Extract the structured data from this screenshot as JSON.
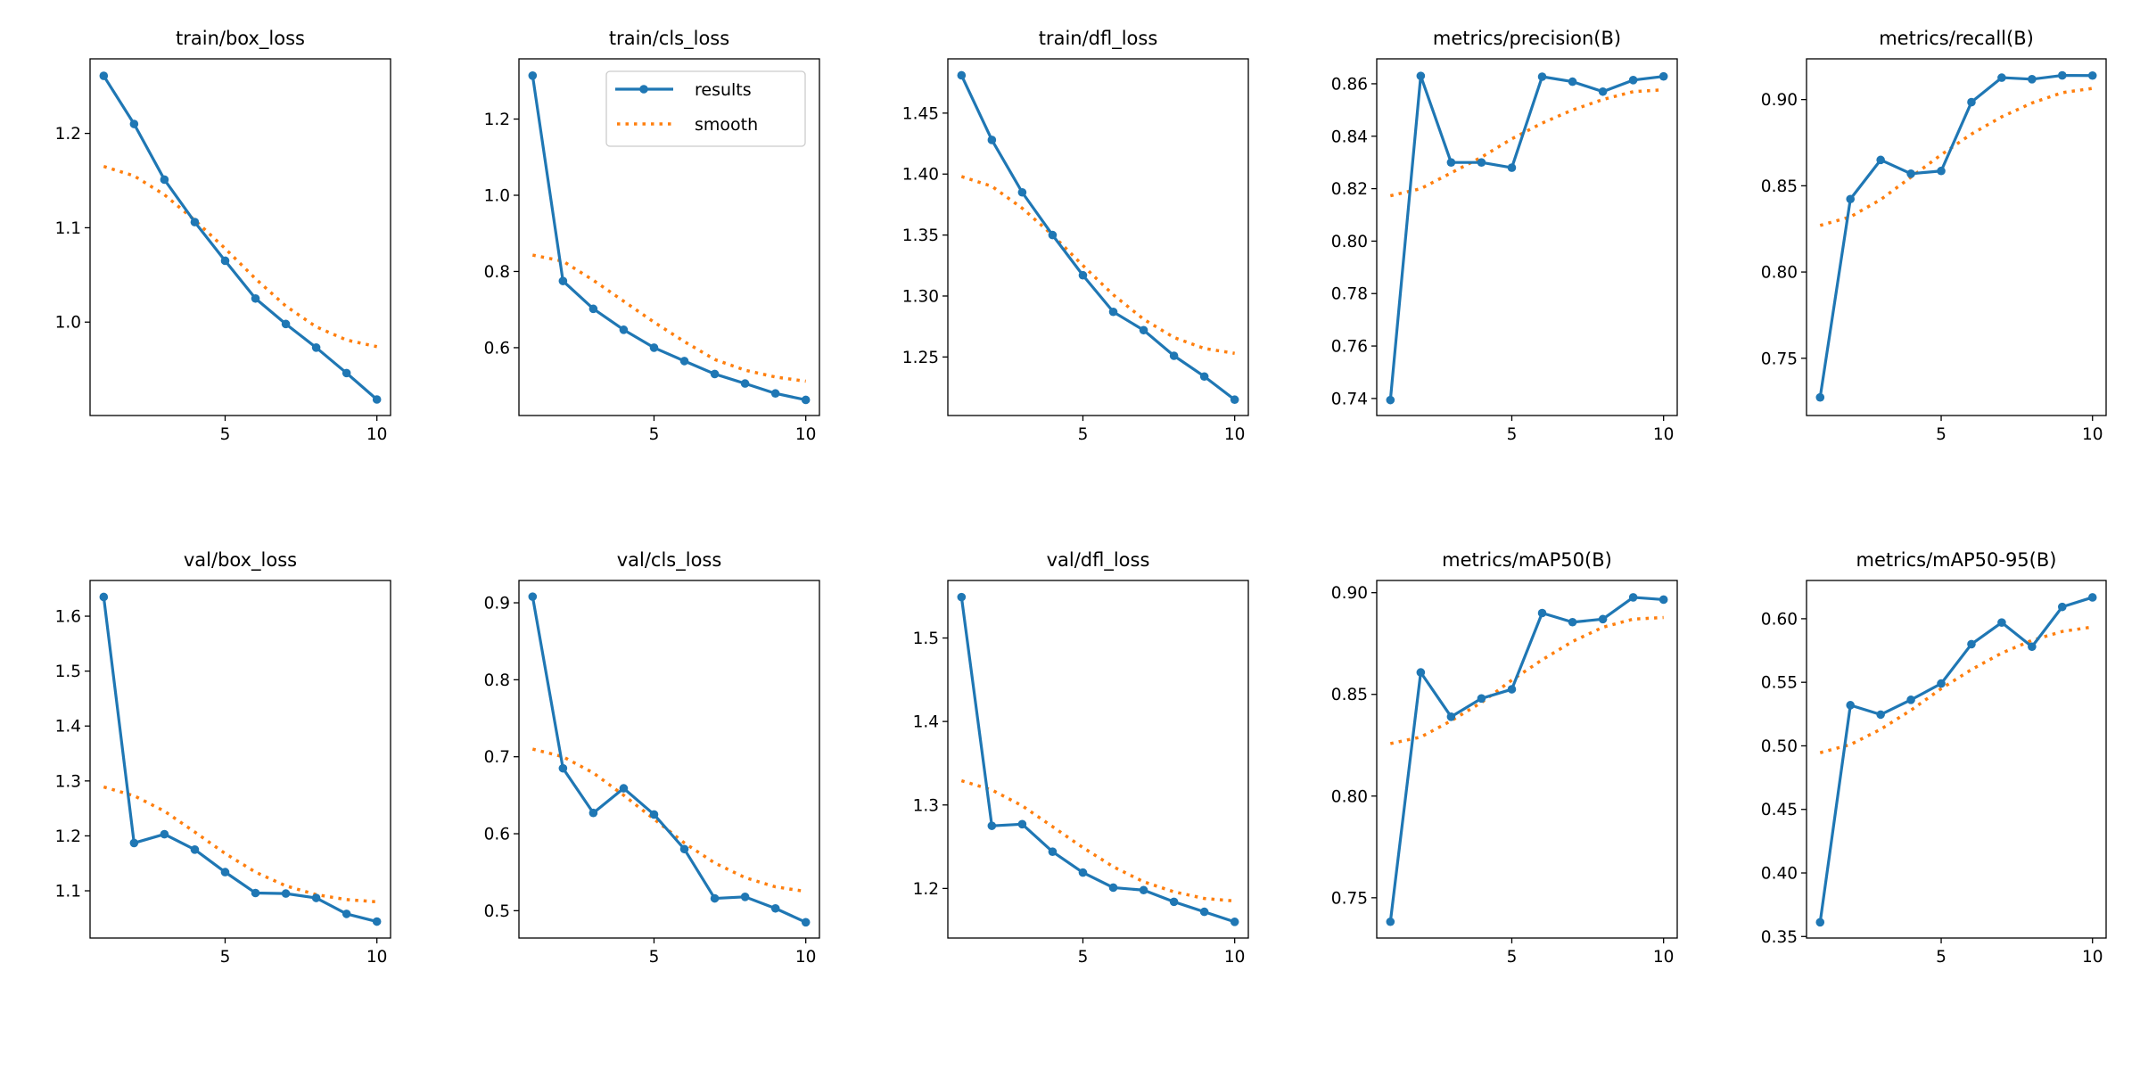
{
  "chart_data": [
    {
      "type": "line",
      "title": "train/box_loss",
      "x": [
        1,
        2,
        3,
        4,
        5,
        6,
        7,
        8,
        9,
        10
      ],
      "xticks": [
        5,
        10
      ],
      "yticks": [
        "1.0",
        "1.1",
        "1.2"
      ],
      "ylim": [
        0.901,
        1.279
      ],
      "xlim": [
        0.55,
        10.45
      ],
      "series": [
        {
          "name": "results",
          "values": [
            1.261,
            1.21,
            1.151,
            1.106,
            1.065,
            1.025,
            0.998,
            0.973,
            0.946,
            0.918
          ]
        },
        {
          "name": "smooth",
          "values": [
            1.165,
            1.155,
            1.135,
            1.108,
            1.078,
            1.046,
            1.017,
            0.995,
            0.981,
            0.974
          ]
        }
      ]
    },
    {
      "type": "line",
      "title": "train/cls_loss",
      "x": [
        1,
        2,
        3,
        4,
        5,
        6,
        7,
        8,
        9,
        10
      ],
      "xticks": [
        5,
        10
      ],
      "yticks": [
        "0.6",
        "0.8",
        "1.0",
        "1.2"
      ],
      "ylim": [
        0.422,
        1.358
      ],
      "xlim": [
        0.55,
        10.45
      ],
      "series": [
        {
          "name": "results",
          "values": [
            1.314,
            0.775,
            0.702,
            0.647,
            0.6,
            0.565,
            0.531,
            0.506,
            0.48,
            0.463
          ]
        },
        {
          "name": "smooth",
          "values": [
            0.843,
            0.827,
            0.777,
            0.722,
            0.667,
            0.616,
            0.569,
            0.541,
            0.523,
            0.512
          ]
        }
      ]
    },
    {
      "type": "line",
      "title": "train/dfl_loss",
      "x": [
        1,
        2,
        3,
        4,
        5,
        6,
        7,
        8,
        9,
        10
      ],
      "xticks": [
        5,
        10
      ],
      "yticks": [
        "1.25",
        "1.30",
        "1.35",
        "1.40",
        "1.45"
      ],
      "ylim": [
        1.202,
        1.4945
      ],
      "xlim": [
        0.55,
        10.45
      ],
      "series": [
        {
          "name": "results",
          "values": [
            1.481,
            1.428,
            1.385,
            1.35,
            1.317,
            1.287,
            1.272,
            1.251,
            1.234,
            1.215
          ]
        },
        {
          "name": "smooth",
          "values": [
            1.398,
            1.39,
            1.372,
            1.35,
            1.325,
            1.301,
            1.281,
            1.266,
            1.257,
            1.253
          ]
        }
      ]
    },
    {
      "type": "line",
      "title": "metrics/precision(B)",
      "x": [
        1,
        2,
        3,
        4,
        5,
        6,
        7,
        8,
        9,
        10
      ],
      "xticks": [
        5,
        10
      ],
      "yticks": [
        "0.74",
        "0.76",
        "0.78",
        "0.80",
        "0.82",
        "0.84",
        "0.86"
      ],
      "ylim": [
        0.7335,
        0.8695
      ],
      "xlim": [
        0.55,
        10.45
      ],
      "series": [
        {
          "name": "results",
          "values": [
            0.7394,
            0.863,
            0.83,
            0.83,
            0.828,
            0.8627,
            0.8608,
            0.857,
            0.8614,
            0.8628
          ]
        },
        {
          "name": "smooth",
          "values": [
            0.8173,
            0.82,
            0.826,
            0.832,
            0.839,
            0.845,
            0.85,
            0.854,
            0.857,
            0.8577
          ]
        }
      ]
    },
    {
      "type": "line",
      "title": "metrics/recall(B)",
      "x": [
        1,
        2,
        3,
        4,
        5,
        6,
        7,
        8,
        9,
        10
      ],
      "xticks": [
        5,
        10
      ],
      "yticks": [
        "0.75",
        "0.80",
        "0.85",
        "0.90"
      ],
      "ylim": [
        0.7168,
        0.9236
      ],
      "xlim": [
        0.55,
        10.45
      ],
      "series": [
        {
          "name": "results",
          "values": [
            0.7273,
            0.8423,
            0.865,
            0.857,
            0.8586,
            0.8985,
            0.9127,
            0.9118,
            0.914,
            0.9139
          ]
        },
        {
          "name": "smooth",
          "values": [
            0.827,
            0.832,
            0.842,
            0.855,
            0.868,
            0.88,
            0.89,
            0.898,
            0.904,
            0.9065
          ]
        }
      ]
    },
    {
      "type": "line",
      "title": "val/box_loss",
      "x": [
        1,
        2,
        3,
        4,
        5,
        6,
        7,
        8,
        9,
        10
      ],
      "xticks": [
        5,
        10
      ],
      "yticks": [
        "1.1",
        "1.2",
        "1.3",
        "1.4",
        "1.5",
        "1.6"
      ],
      "ylim": [
        1.014,
        1.665
      ],
      "xlim": [
        0.55,
        10.45
      ],
      "series": [
        {
          "name": "results",
          "values": [
            1.635,
            1.187,
            1.203,
            1.175,
            1.134,
            1.096,
            1.095,
            1.087,
            1.058,
            1.044
          ]
        },
        {
          "name": "smooth",
          "values": [
            1.289,
            1.273,
            1.245,
            1.207,
            1.168,
            1.134,
            1.109,
            1.093,
            1.084,
            1.08
          ]
        }
      ]
    },
    {
      "type": "line",
      "title": "val/cls_loss",
      "x": [
        1,
        2,
        3,
        4,
        5,
        6,
        7,
        8,
        9,
        10
      ],
      "xticks": [
        5,
        10
      ],
      "yticks": [
        "0.5",
        "0.6",
        "0.7",
        "0.8",
        "0.9"
      ],
      "ylim": [
        0.4645,
        0.929
      ],
      "xlim": [
        0.55,
        10.45
      ],
      "series": [
        {
          "name": "results",
          "values": [
            0.908,
            0.685,
            0.627,
            0.659,
            0.625,
            0.58,
            0.516,
            0.518,
            0.503,
            0.485
          ]
        },
        {
          "name": "smooth",
          "values": [
            0.71,
            0.7,
            0.679,
            0.65,
            0.619,
            0.588,
            0.562,
            0.543,
            0.531,
            0.525
          ]
        }
      ]
    },
    {
      "type": "line",
      "title": "val/dfl_loss",
      "x": [
        1,
        2,
        3,
        4,
        5,
        6,
        7,
        8,
        9,
        10
      ],
      "xticks": [
        5,
        10
      ],
      "yticks": [
        "1.2",
        "1.3",
        "1.4",
        "1.5"
      ],
      "ylim": [
        1.1406,
        1.5689
      ],
      "xlim": [
        0.55,
        10.45
      ],
      "series": [
        {
          "name": "results",
          "values": [
            1.549,
            1.275,
            1.277,
            1.244,
            1.219,
            1.201,
            1.198,
            1.184,
            1.172,
            1.16
          ]
        },
        {
          "name": "smooth",
          "values": [
            1.329,
            1.318,
            1.299,
            1.274,
            1.249,
            1.226,
            1.208,
            1.196,
            1.188,
            1.185
          ]
        }
      ]
    },
    {
      "type": "line",
      "title": "metrics/mAP50(B)",
      "x": [
        1,
        2,
        3,
        4,
        5,
        6,
        7,
        8,
        9,
        10
      ],
      "xticks": [
        5,
        10
      ],
      "yticks": [
        "0.75",
        "0.80",
        "0.85",
        "0.90"
      ],
      "ylim": [
        0.7302,
        0.906
      ],
      "xlim": [
        0.55,
        10.45
      ],
      "series": [
        {
          "name": "results",
          "values": [
            0.7382,
            0.8608,
            0.839,
            0.848,
            0.8525,
            0.89,
            0.8855,
            0.887,
            0.8977,
            0.8966
          ]
        },
        {
          "name": "smooth",
          "values": [
            0.8258,
            0.829,
            0.837,
            0.846,
            0.857,
            0.867,
            0.876,
            0.883,
            0.887,
            0.8878
          ]
        }
      ]
    },
    {
      "type": "line",
      "title": "metrics/mAP50-95(B)",
      "x": [
        1,
        2,
        3,
        4,
        5,
        6,
        7,
        8,
        9,
        10
      ],
      "xticks": [
        5,
        10
      ],
      "yticks": [
        "0.35",
        "0.40",
        "0.45",
        "0.50",
        "0.55",
        "0.60"
      ],
      "ylim": [
        0.3488,
        0.6301
      ],
      "xlim": [
        0.55,
        10.45
      ],
      "series": [
        {
          "name": "results",
          "values": [
            0.3612,
            0.532,
            0.5246,
            0.5362,
            0.549,
            0.58,
            0.597,
            0.578,
            0.6093,
            0.6168
          ]
        },
        {
          "name": "smooth",
          "values": [
            0.4946,
            0.501,
            0.513,
            0.528,
            0.545,
            0.56,
            0.573,
            0.583,
            0.59,
            0.5935
          ]
        }
      ]
    }
  ],
  "legend": {
    "placement": "upper-right of train/cls_loss",
    "entries": [
      "results",
      "smooth"
    ]
  },
  "colors": {
    "results": "#1f77b4",
    "smooth": "#ff7f0e",
    "axes": "#000000"
  },
  "grid": false
}
